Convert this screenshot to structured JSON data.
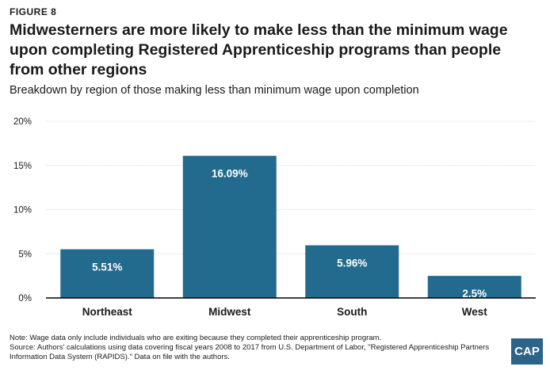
{
  "figure_label": "FIGURE 8",
  "title": "Midwesterners are more likely to make less than the minimum wage upon completing Registered Apprenticeship programs than people from other regions",
  "subtitle": "Breakdown by region of those making less than minimum wage upon completion",
  "notes": {
    "note": "Note: Wage data only include individuals who are exiting because they completed their apprenticeship program.",
    "source_line1": "Source: Authors' calculations using data covering fiscal years 2008 to 2017 from U.S. Department of Labor, \"Registered Apprenticeship Partners",
    "source_line2": "Information Data System (RAPIDS).\" Data on file with the authors."
  },
  "logo_text": "CAP",
  "colors": {
    "bar": "#236b8e",
    "grid": "#d9d9d9",
    "axis": "#000000",
    "label": "#ffffff"
  },
  "chart_data": {
    "type": "bar",
    "categories": [
      "Northeast",
      "Midwest",
      "South",
      "West"
    ],
    "values": [
      5.51,
      16.09,
      5.96,
      2.5
    ],
    "data_labels": [
      "5.51%",
      "16.09%",
      "5.96%",
      "2.5%"
    ],
    "yticks": [
      "0%",
      "5%",
      "10%",
      "15%",
      "20%"
    ],
    "ylim": [
      0,
      20
    ],
    "grid": true,
    "legend": "none"
  }
}
